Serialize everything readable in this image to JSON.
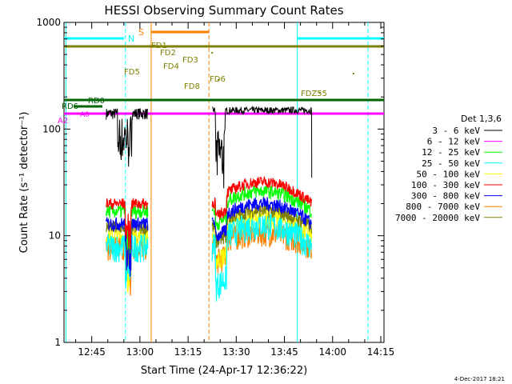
{
  "chart_data": {
    "type": "line",
    "title": "HESSI Observing Summary Count Rates",
    "xlabel": "Start Time (24-Apr-17 12:36:22)",
    "ylabel": "Count Rate (s⁻¹ detector⁻¹)",
    "yscale": "log",
    "xlim": [
      "12:36:22",
      "14:16:00"
    ],
    "ylim": [
      1,
      1000
    ],
    "x_ticks": [
      "12:45",
      "13:00",
      "13:15",
      "13:30",
      "13:45",
      "14:00",
      "14:15"
    ],
    "y_ticks": [
      "1",
      "10",
      "100",
      "1000"
    ],
    "grid": false,
    "legend_position": "right",
    "legend_title": "Det 1,3,6",
    "series": [
      {
        "name": "3 - 6 keV",
        "color": "#000000",
        "approx_level": 140
      },
      {
        "name": "6 - 12 keV",
        "color": "#ff00ff",
        "approx_level": 133
      },
      {
        "name": "12 - 25 keV",
        "color": "#00ff00",
        "approx_level": 17
      },
      {
        "name": "25 - 50 keV",
        "color": "#00ffff",
        "approx_level": 8
      },
      {
        "name": "50 - 100 keV",
        "color": "#ffff00",
        "approx_level": 10
      },
      {
        "name": "100 - 300 keV",
        "color": "#ff0000",
        "approx_level": 20
      },
      {
        "name": "300 - 800 keV",
        "color": "#0000ff",
        "approx_level": 13
      },
      {
        "name": "800 - 7000 keV",
        "color": "#ff8000",
        "approx_level": 8
      },
      {
        "name": "7000 - 20000 keV",
        "color": "#808000",
        "approx_level": 12
      }
    ],
    "annotations": {
      "N": {
        "label": "N",
        "color": "#00ffff"
      },
      "S": {
        "label": "S",
        "color": "#ff8000"
      },
      "RD": [
        {
          "label": "RD0",
          "color": "#006400"
        },
        {
          "label": "RD6",
          "color": "#006400"
        },
        {
          "label": "A0",
          "color": "#ff00ff"
        },
        {
          "label": "A2",
          "color": "#ff00ff"
        }
      ],
      "FD": [
        {
          "label": "FD1"
        },
        {
          "label": "FD2"
        },
        {
          "label": "FD3"
        },
        {
          "label": "FD4"
        },
        {
          "label": "FD5"
        },
        {
          "label": "FD6"
        },
        {
          "label": "FD8"
        },
        {
          "label": "FDZ55"
        }
      ],
      "fd_color": "#808000"
    },
    "footer_date": "4-Dec-2017 18:21"
  }
}
